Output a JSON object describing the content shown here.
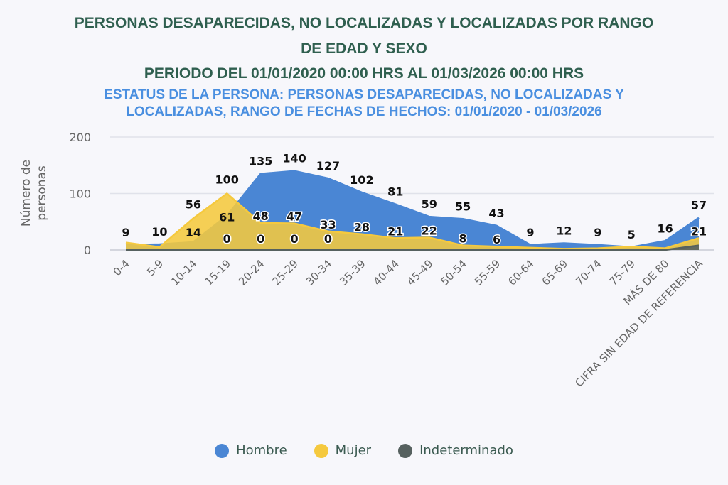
{
  "title_line1": "PERSONAS DESAPARECIDAS, NO LOCALIZADAS Y LOCALIZADAS POR RANGO",
  "title_line2": "DE EDAD Y SEXO",
  "period": "PERIODO DEL 01/01/2020 00:00 HRS AL 01/03/2026 00:00 HRS",
  "subtitle_line1": "ESTATUS DE LA PERSONA: PERSONAS DESAPARECIDAS, NO LOCALIZADAS Y",
  "subtitle_line2": "LOCALIZADAS, RANGO DE FECHAS DE HECHOS: 01/01/2020 - 01/03/2026",
  "chart_data": {
    "type": "area",
    "ylabel": "Número de personas",
    "ylim": [
      0,
      200
    ],
    "yticks": [
      "0",
      "100",
      "200"
    ],
    "grid": true,
    "legend_position": "bottom",
    "categories": [
      "0-4",
      "5-9",
      "10-14",
      "15-19",
      "20-24",
      "25-29",
      "30-34",
      "35-39",
      "40-44",
      "45-49",
      "50-54",
      "55-59",
      "60-64",
      "65-69",
      "70-74",
      "75-79",
      "MÁS DE 80",
      "CIFRA SIN EDAD DE REFERENCIA"
    ],
    "series": [
      {
        "name": "Hombre",
        "color": "#4a86d4",
        "values": [
          9,
          10,
          14,
          61,
          135,
          140,
          127,
          102,
          81,
          59,
          55,
          43,
          9,
          12,
          9,
          5,
          16,
          57
        ],
        "labels": [
          "9",
          "10",
          "14",
          "61",
          "135",
          "140",
          "127",
          "102",
          "81",
          "59",
          "55",
          "43",
          "9",
          "12",
          "9",
          "5",
          "16",
          "57"
        ]
      },
      {
        "name": "Mujer",
        "color": "#f5c93e",
        "values": [
          13,
          5,
          56,
          100,
          48,
          47,
          33,
          28,
          21,
          22,
          8,
          6,
          4,
          2,
          3,
          6,
          3,
          21
        ],
        "labels": [
          "",
          "",
          "56",
          "100",
          "48",
          "47",
          "33",
          "28",
          "21",
          "22",
          "8",
          "6",
          "",
          "",
          "",
          "",
          "",
          "21"
        ]
      },
      {
        "name": "Indeterminado",
        "color": "#56615f",
        "values": [
          0,
          0,
          0,
          0,
          0,
          0,
          0,
          0,
          0,
          0,
          0,
          0,
          0,
          0,
          0,
          0,
          0,
          8
        ],
        "labels": [
          "",
          "",
          "",
          "0",
          "0",
          "0",
          "0",
          "",
          "",
          "",
          "",
          "",
          "",
          "",
          "",
          "",
          "",
          ""
        ]
      }
    ]
  }
}
